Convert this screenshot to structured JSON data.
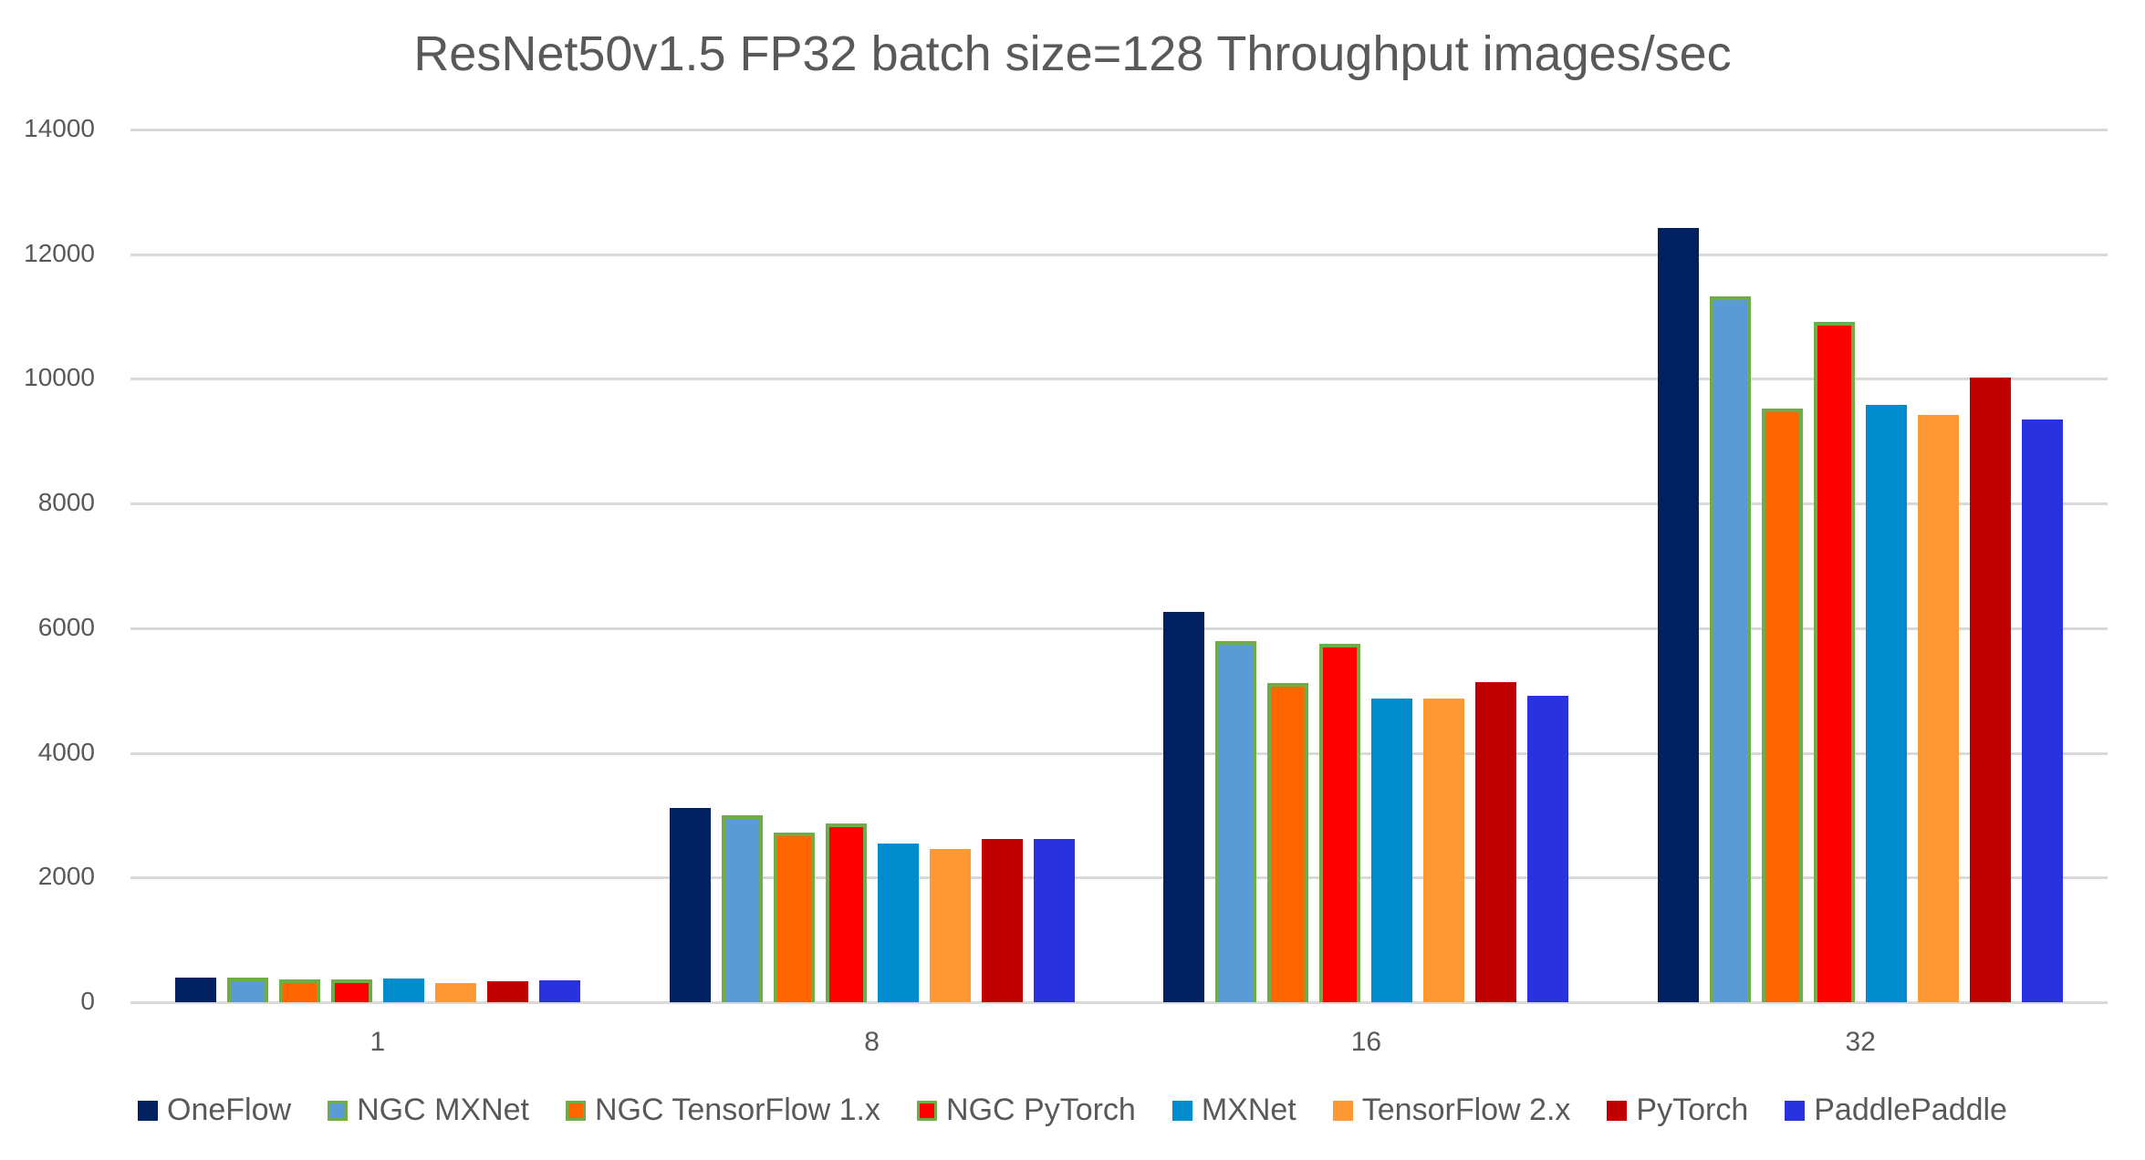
{
  "chart_data": {
    "type": "bar",
    "title": "ResNet50v1.5 FP32 batch size=128 Throughput images/sec",
    "xlabel": "",
    "ylabel": "",
    "ylim": [
      0,
      14000
    ],
    "yticks": [
      0,
      2000,
      4000,
      6000,
      8000,
      10000,
      12000,
      14000
    ],
    "grid": true,
    "legend_position": "bottom",
    "categories": [
      "1",
      "8",
      "16",
      "32"
    ],
    "series": [
      {
        "name": "OneFlow",
        "color": "#002060",
        "outlined": false,
        "values": [
          394,
          3115,
          6268,
          12413
        ]
      },
      {
        "name": "NGC MXNet",
        "color": "#5b9bd5",
        "outlined": true,
        "values": [
          400,
          2993,
          5792,
          11328
        ]
      },
      {
        "name": "NGC TensorFlow 1.x",
        "color": "#ff6600",
        "outlined": true,
        "values": [
          370,
          2715,
          5124,
          9518
        ]
      },
      {
        "name": "NGC PyTorch",
        "color": "#ff0000",
        "outlined": true,
        "values": [
          370,
          2872,
          5743,
          10915
        ]
      },
      {
        "name": "MXNet",
        "color": "#008ccc",
        "outlined": false,
        "values": [
          380,
          2540,
          4866,
          9577
        ]
      },
      {
        "name": "TensorFlow 2.x",
        "color": "#ff9933",
        "outlined": false,
        "values": [
          307,
          2453,
          4866,
          9416
        ]
      },
      {
        "name": "PyTorch",
        "color": "#c00000",
        "outlined": false,
        "values": [
          341,
          2613,
          5136,
          10015
        ]
      },
      {
        "name": "PaddlePaddle",
        "color": "#2a32e0",
        "outlined": false,
        "values": [
          356,
          2613,
          4916,
          9347
        ]
      }
    ]
  }
}
